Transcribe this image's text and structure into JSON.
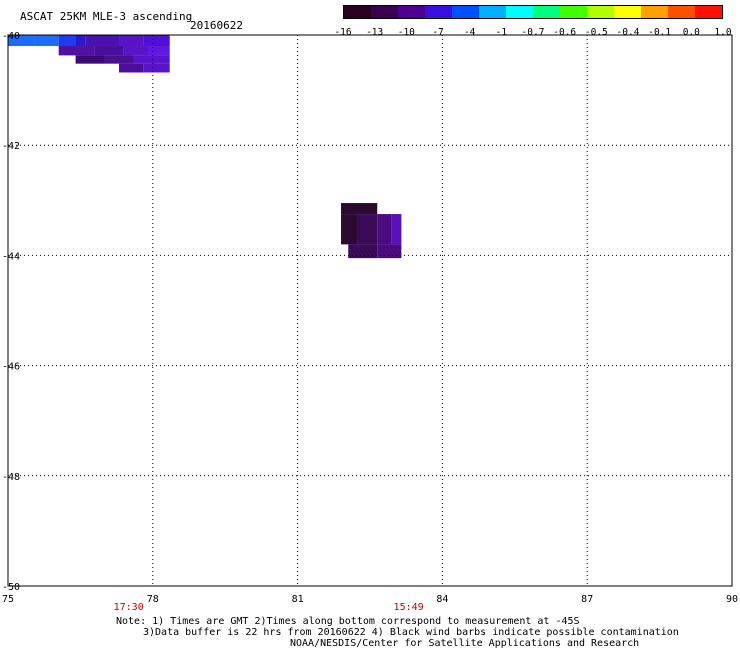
{
  "header": {
    "title": "ASCAT 25KM MLE-3 ascending",
    "date": "20160622"
  },
  "colorbar": {
    "labels": [
      "-16",
      "-13",
      "-10",
      "-7",
      "-4",
      "-1",
      "-0.7",
      "-0.6",
      "-0.5",
      "-0.4",
      "-0.1",
      "0.0",
      "1.0"
    ],
    "colors": [
      "#2a0020",
      "#3c0050",
      "#500090",
      "#3a10e0",
      "#0050ff",
      "#00b0ff",
      "#00ffff",
      "#00ff80",
      "#40ff00",
      "#b0ff00",
      "#ffff00",
      "#ffa000",
      "#ff5000",
      "#ff1000"
    ]
  },
  "map": {
    "lon_range": [
      75,
      90
    ],
    "lat_range": [
      -40,
      -50
    ],
    "lon_ticks": [
      "75",
      "78",
      "81",
      "84",
      "87",
      "90"
    ],
    "lat_ticks": [
      "-40",
      "-42",
      "-44",
      "-46",
      "-48",
      "-50"
    ],
    "time_labels": [
      {
        "lon": 77.5,
        "text": "17:30"
      },
      {
        "lon": 83.3,
        "text": "15:49"
      }
    ],
    "swath_cells": [
      {
        "lon": [
          75.0,
          75.55
        ],
        "lat": [
          -40.0,
          -40.2
        ],
        "color": "#1e6cff"
      },
      {
        "lon": [
          75.55,
          76.05
        ],
        "lat": [
          -40.0,
          -40.2
        ],
        "color": "#1e6cff"
      },
      {
        "lon": [
          76.05,
          76.4
        ],
        "lat": [
          -40.0,
          -40.2
        ],
        "color": "#1c3cf0"
      },
      {
        "lon": [
          76.4,
          76.6
        ],
        "lat": [
          -40.0,
          -40.2
        ],
        "color": "#2a18d0"
      },
      {
        "lon": [
          76.6,
          77.3
        ],
        "lat": [
          -40.0,
          -40.2
        ],
        "color": "#4a10b0"
      },
      {
        "lon": [
          77.3,
          77.8
        ],
        "lat": [
          -40.0,
          -40.2
        ],
        "color": "#5a14c8"
      },
      {
        "lon": [
          77.8,
          78.35
        ],
        "lat": [
          -40.0,
          -40.2
        ],
        "color": "#5010d8"
      },
      {
        "lon": [
          76.05,
          76.8
        ],
        "lat": [
          -40.2,
          -40.37
        ],
        "color": "#5010a0"
      },
      {
        "lon": [
          76.8,
          77.4
        ],
        "lat": [
          -40.2,
          -40.37
        ],
        "color": "#48109a"
      },
      {
        "lon": [
          77.4,
          77.9
        ],
        "lat": [
          -40.2,
          -40.37
        ],
        "color": "#5a14c8"
      },
      {
        "lon": [
          77.9,
          78.35
        ],
        "lat": [
          -40.2,
          -40.37
        ],
        "color": "#6018e0"
      },
      {
        "lon": [
          76.4,
          77.0
        ],
        "lat": [
          -40.37,
          -40.52
        ],
        "color": "#3c0a70"
      },
      {
        "lon": [
          77.0,
          77.6
        ],
        "lat": [
          -40.37,
          -40.52
        ],
        "color": "#4a0e90"
      },
      {
        "lon": [
          77.6,
          78.35
        ],
        "lat": [
          -40.37,
          -40.52
        ],
        "color": "#5814c8"
      },
      {
        "lon": [
          77.3,
          77.8
        ],
        "lat": [
          -40.52,
          -40.68
        ],
        "color": "#4a0e98"
      },
      {
        "lon": [
          77.8,
          78.35
        ],
        "lat": [
          -40.52,
          -40.68
        ],
        "color": "#5814c8"
      },
      {
        "lon": [
          81.9,
          82.65
        ],
        "lat": [
          -43.05,
          -43.25
        ],
        "color": "#2c0a30"
      },
      {
        "lon": [
          81.9,
          82.25
        ],
        "lat": [
          -43.25,
          -43.8
        ],
        "color": "#2c0a30"
      },
      {
        "lon": [
          82.25,
          82.65
        ],
        "lat": [
          -43.25,
          -43.8
        ],
        "color": "#3a0a58"
      },
      {
        "lon": [
          82.65,
          82.95
        ],
        "lat": [
          -43.25,
          -43.8
        ],
        "color": "#4a0a80"
      },
      {
        "lon": [
          82.95,
          83.15
        ],
        "lat": [
          -43.25,
          -43.8
        ],
        "color": "#5a10b8"
      },
      {
        "lon": [
          82.05,
          82.65
        ],
        "lat": [
          -43.8,
          -44.05
        ],
        "color": "#3a0a58"
      },
      {
        "lon": [
          82.65,
          83.15
        ],
        "lat": [
          -43.8,
          -44.05
        ],
        "color": "#4a0a80"
      }
    ]
  },
  "notes": {
    "line1": "Note: 1) Times are GMT 2)Times along bottom correspond to measurement at -45S",
    "line2": "3)Data buffer is 22 hrs from 20160622 4) Black wind barbs indicate possible contamination",
    "line3": "NOAA/NESDIS/Center for Satellite Applications and Research"
  }
}
